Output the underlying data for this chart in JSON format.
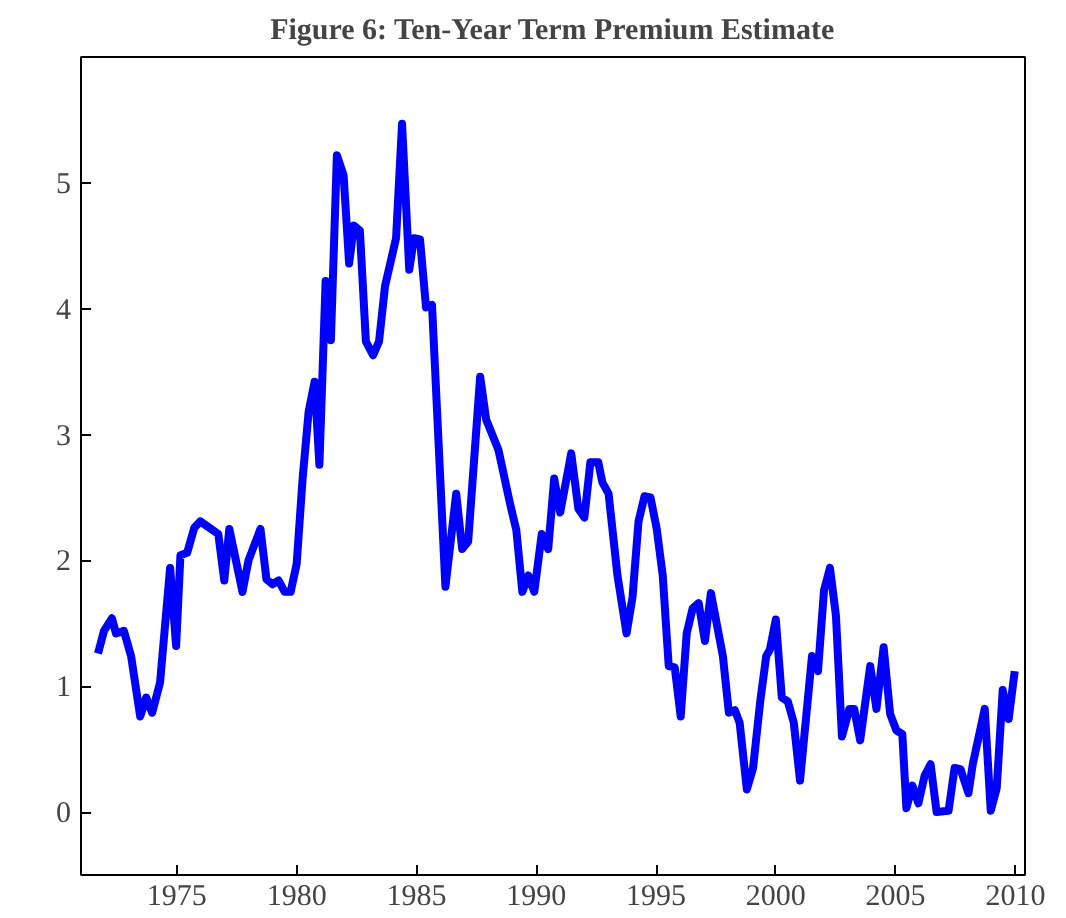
{
  "chart_data": {
    "type": "line",
    "title": "Figure 6: Ten-Year Term Premium Estimate",
    "x": [
      1971.71,
      1971.96,
      1972.29,
      1972.46,
      1972.79,
      1973.09,
      1973.47,
      1973.72,
      1973.97,
      1974.3,
      1974.72,
      1974.97,
      1975.15,
      1975.43,
      1975.73,
      1975.98,
      1976.73,
      1976.98,
      1977.19,
      1977.74,
      1977.99,
      1978.49,
      1978.74,
      1978.99,
      1979.25,
      1979.5,
      1979.75,
      1980.0,
      1980.25,
      1980.5,
      1980.75,
      1980.95,
      1981.21,
      1981.43,
      1981.68,
      1981.96,
      1982.19,
      1982.39,
      1982.64,
      1982.89,
      1983.19,
      1983.44,
      1983.69,
      1984.15,
      1984.4,
      1984.7,
      1984.9,
      1985.15,
      1985.4,
      1985.65,
      1986.21,
      1986.66,
      1986.91,
      1987.16,
      1987.66,
      1987.91,
      1988.42,
      1988.92,
      1989.17,
      1989.42,
      1989.67,
      1989.92,
      1990.23,
      1990.5,
      1990.75,
      1991.0,
      1991.46,
      1991.76,
      1992.01,
      1992.26,
      1992.59,
      1992.76,
      1993.02,
      1993.39,
      1993.77,
      1994.02,
      1994.27,
      1994.52,
      1994.77,
      1995.03,
      1995.28,
      1995.53,
      1995.78,
      1996.03,
      1996.28,
      1996.53,
      1996.78,
      1997.04,
      1997.29,
      1997.79,
      1998.04,
      1998.29,
      1998.49,
      1998.79,
      1999.05,
      1999.35,
      1999.6,
      1999.75,
      2000.0,
      2000.25,
      2000.5,
      2000.75,
      2001.01,
      2001.51,
      2001.76,
      2002.01,
      2002.26,
      2002.51,
      2002.76,
      2003.07,
      2003.27,
      2003.52,
      2003.94,
      2004.2,
      2004.5,
      2004.77,
      2005.03,
      2005.28,
      2005.45,
      2005.7,
      2005.95,
      2006.21,
      2006.46,
      2006.71,
      2007.21,
      2007.46,
      2007.71,
      2008.04,
      2008.22,
      2008.72,
      2008.97,
      2009.22,
      2009.47,
      2009.72,
      2009.97
    ],
    "series": [
      {
        "color": "#0000ff",
        "values": [
          1.26,
          1.44,
          1.54,
          1.42,
          1.44,
          1.24,
          0.76,
          0.91,
          0.79,
          1.03,
          1.94,
          1.32,
          2.04,
          2.06,
          2.26,
          2.31,
          2.21,
          1.84,
          2.25,
          1.75,
          2.0,
          2.25,
          1.85,
          1.81,
          1.84,
          1.75,
          1.75,
          1.97,
          2.65,
          3.18,
          3.42,
          2.76,
          4.22,
          3.75,
          5.22,
          5.06,
          4.36,
          4.66,
          4.62,
          3.74,
          3.63,
          3.74,
          4.18,
          4.56,
          5.47,
          4.31,
          4.56,
          4.55,
          4.01,
          4.03,
          1.79,
          2.53,
          2.09,
          2.15,
          3.46,
          3.12,
          2.88,
          2.44,
          2.24,
          1.75,
          1.88,
          1.75,
          2.21,
          2.09,
          2.65,
          2.38,
          2.85,
          2.41,
          2.34,
          2.78,
          2.78,
          2.62,
          2.53,
          1.88,
          1.42,
          1.71,
          2.31,
          2.51,
          2.5,
          2.25,
          1.88,
          1.16,
          1.15,
          0.76,
          1.42,
          1.62,
          1.66,
          1.36,
          1.74,
          1.24,
          0.79,
          0.81,
          0.71,
          0.18,
          0.35,
          0.88,
          1.24,
          1.29,
          1.53,
          0.91,
          0.88,
          0.71,
          0.25,
          1.24,
          1.12,
          1.76,
          1.94,
          1.56,
          0.6,
          0.82,
          0.82,
          0.57,
          1.16,
          0.82,
          1.31,
          0.78,
          0.65,
          0.62,
          0.03,
          0.21,
          0.07,
          0.29,
          0.38,
          0.0,
          0.01,
          0.35,
          0.34,
          0.15,
          0.38,
          0.82,
          0.01,
          0.19,
          0.97,
          0.74,
          1.12
        ]
      }
    ],
    "xlim": [
      1971,
      2010.4
    ],
    "xticks": [
      1975,
      1980,
      1985,
      1990,
      1995,
      2000,
      2005,
      2010
    ],
    "ylim": [
      -0.5,
      6
    ],
    "yticks": [
      0,
      1,
      2,
      3,
      4,
      5
    ],
    "line_style": "solid"
  }
}
